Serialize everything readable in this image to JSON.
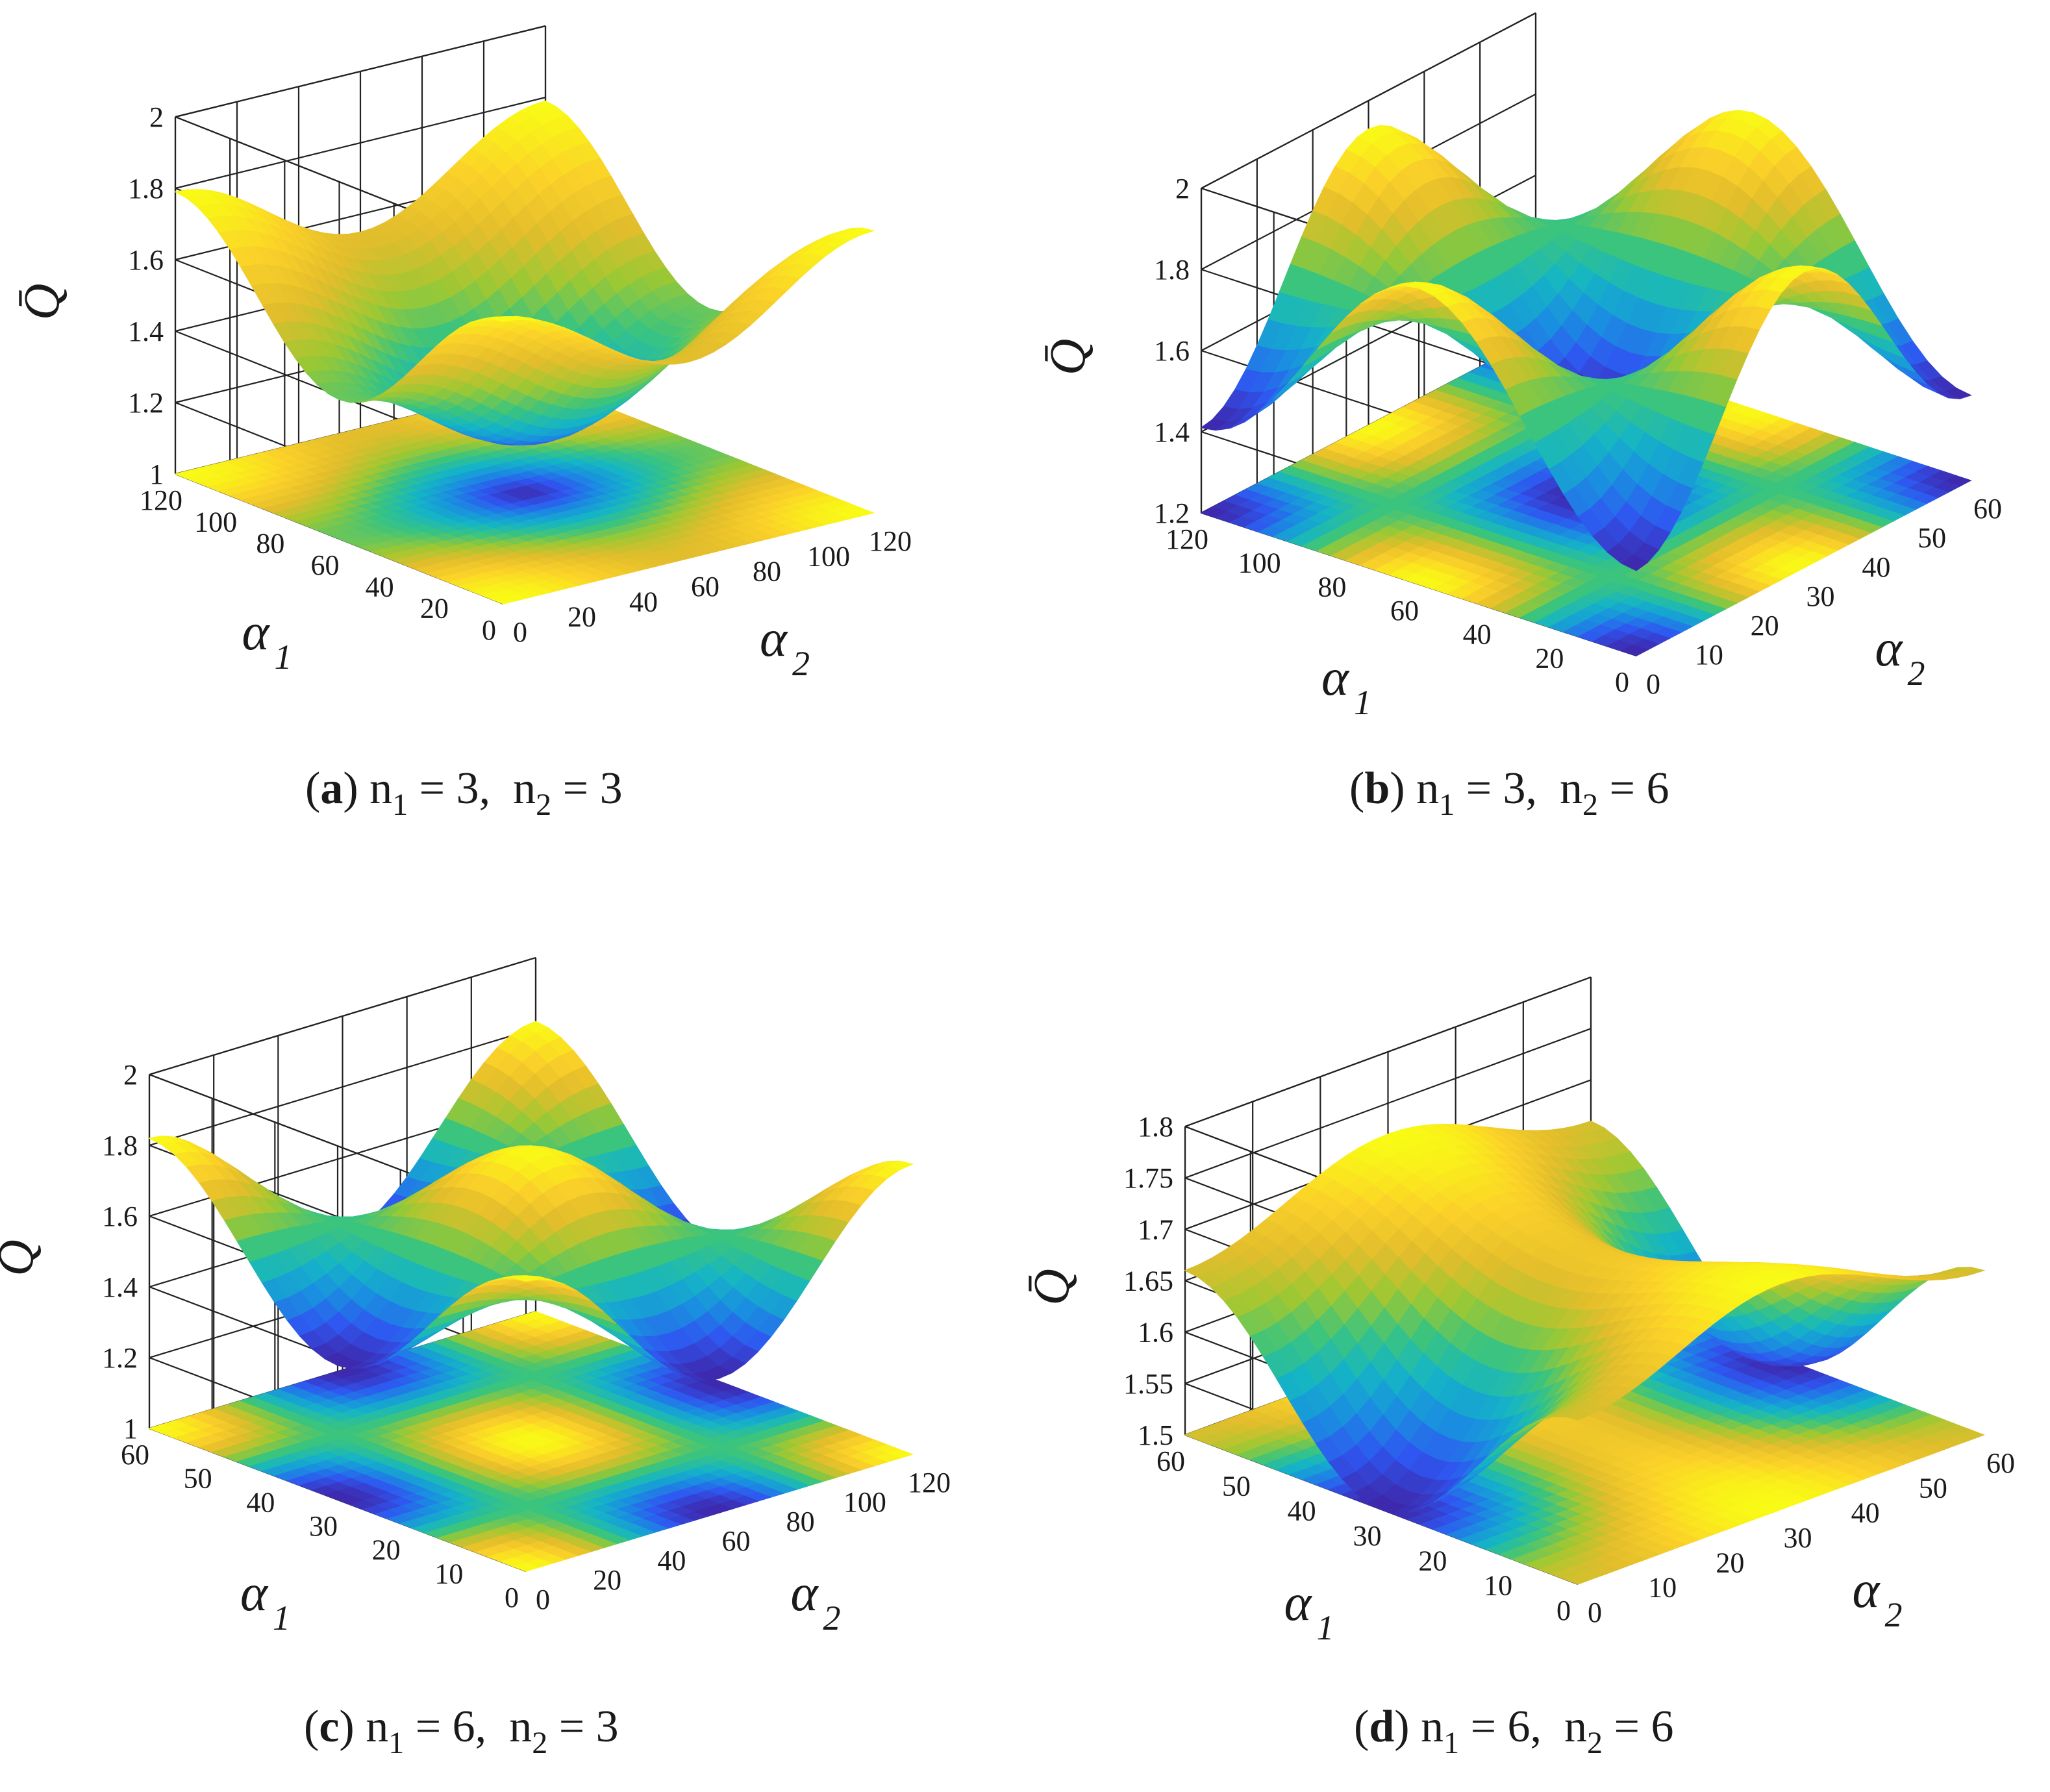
{
  "chart_data": [
    {
      "type": "surface3d",
      "panel_letter": "a",
      "caption": {
        "n1_label": "n",
        "n1_sub": "1",
        "n1_value": "= 3,",
        "n2_label": "n",
        "n2_sub": "2",
        "n2_value": "= 3"
      },
      "zlabel": "Q̄",
      "xlabel": {
        "sym": "α",
        "sub": "1"
      },
      "ylabel": {
        "sym": "α",
        "sub": "2"
      },
      "x_ticks": [
        "0",
        "20",
        "40",
        "60",
        "80",
        "100",
        "120"
      ],
      "y_ticks": [
        "0",
        "20",
        "40",
        "60",
        "80",
        "100",
        "120"
      ],
      "z_ticks": [
        "1",
        "1.2",
        "1.4",
        "1.6",
        "1.8",
        "2"
      ],
      "xlim": [
        0,
        120
      ],
      "ylim": [
        0,
        120
      ],
      "zlim": [
        1,
        2
      ],
      "surface": {
        "base": 1.47,
        "p1": 120,
        "p2": 120,
        "a1": 0.2,
        "a2": 0.12,
        "a12": 0.0,
        "ph1": 0.0,
        "ph2": 0.0,
        "ph12": 0.0,
        "gamma": 0.6
      },
      "grid": true
    },
    {
      "type": "surface3d",
      "panel_letter": "b",
      "caption": {
        "n1_label": "n",
        "n1_sub": "1",
        "n1_value": "= 3,",
        "n2_label": "n",
        "n2_sub": "2",
        "n2_value": "= 6"
      },
      "zlabel": "Q̄",
      "xlabel": {
        "sym": "α",
        "sub": "1"
      },
      "ylabel": {
        "sym": "α",
        "sub": "2"
      },
      "x_ticks": [
        "0",
        "20",
        "40",
        "60",
        "80",
        "100",
        "120"
      ],
      "y_ticks": [
        "0",
        "10",
        "20",
        "30",
        "40",
        "50",
        "60"
      ],
      "z_ticks": [
        "1.2",
        "1.4",
        "1.6",
        "1.8",
        "2"
      ],
      "xlim": [
        0,
        120
      ],
      "ylim": [
        0,
        60
      ],
      "zlim": [
        1.2,
        2
      ],
      "surface": {
        "base": 1.67,
        "p1": 120,
        "p2": 60,
        "a1": 0.0,
        "a2": 0.0,
        "a12": 0.26,
        "ph1": 0.0,
        "ph2": 0.0,
        "ph12": 3.14,
        "gamma": 1.0
      },
      "grid": true
    },
    {
      "type": "surface3d",
      "panel_letter": "c",
      "caption": {
        "n1_label": "n",
        "n1_sub": "1",
        "n1_value": "= 6,",
        "n2_label": "n",
        "n2_sub": "2",
        "n2_value": "= 3"
      },
      "zlabel": "Q̄",
      "xlabel": {
        "sym": "α",
        "sub": "1"
      },
      "ylabel": {
        "sym": "α",
        "sub": "2"
      },
      "x_ticks": [
        "0",
        "10",
        "20",
        "30",
        "40",
        "50",
        "60"
      ],
      "y_ticks": [
        "0",
        "20",
        "40",
        "60",
        "80",
        "100",
        "120"
      ],
      "z_ticks": [
        "1",
        "1.2",
        "1.4",
        "1.6",
        "1.8",
        "2"
      ],
      "xlim": [
        0,
        60
      ],
      "ylim": [
        0,
        120
      ],
      "zlim": [
        1,
        2
      ],
      "surface": {
        "base": 1.6,
        "p1": 60,
        "p2": 120,
        "a1": 0.0,
        "a2": 0.0,
        "a12": 0.22,
        "ph1": 0.0,
        "ph2": 0.0,
        "ph12": 0.0,
        "gamma": 1.0
      },
      "grid": true
    },
    {
      "type": "surface3d",
      "panel_letter": "d",
      "caption": {
        "n1_label": "n",
        "n1_sub": "1",
        "n1_value": "= 6,",
        "n2_label": "n",
        "n2_sub": "2",
        "n2_value": "= 6"
      },
      "zlabel": "Q̄",
      "xlabel": {
        "sym": "α",
        "sub": "1"
      },
      "ylabel": {
        "sym": "α",
        "sub": "2"
      },
      "x_ticks": [
        "0",
        "10",
        "20",
        "30",
        "40",
        "50",
        "60"
      ],
      "y_ticks": [
        "0",
        "10",
        "20",
        "30",
        "40",
        "50",
        "60"
      ],
      "z_ticks": [
        "1.5",
        "1.55",
        "1.6",
        "1.65",
        "1.7",
        "1.75",
        "1.8"
      ],
      "xlim": [
        0,
        60
      ],
      "ylim": [
        0,
        60
      ],
      "zlim": [
        1.5,
        1.8
      ],
      "surface": {
        "base": 1.64,
        "p1": 60,
        "p2": 60,
        "a1": 0.05,
        "a2": 0.06,
        "a12": 0.03,
        "ph1": 0.0,
        "ph2": 3.14,
        "ph12": 0.0,
        "gamma": 1.0
      },
      "grid": true
    }
  ],
  "colormap": [
    "#3e26a8",
    "#2f56f0",
    "#1a8fe0",
    "#15b5c5",
    "#3bc47e",
    "#9cc833",
    "#e2bd2c",
    "#fbd129",
    "#f9fb15"
  ]
}
